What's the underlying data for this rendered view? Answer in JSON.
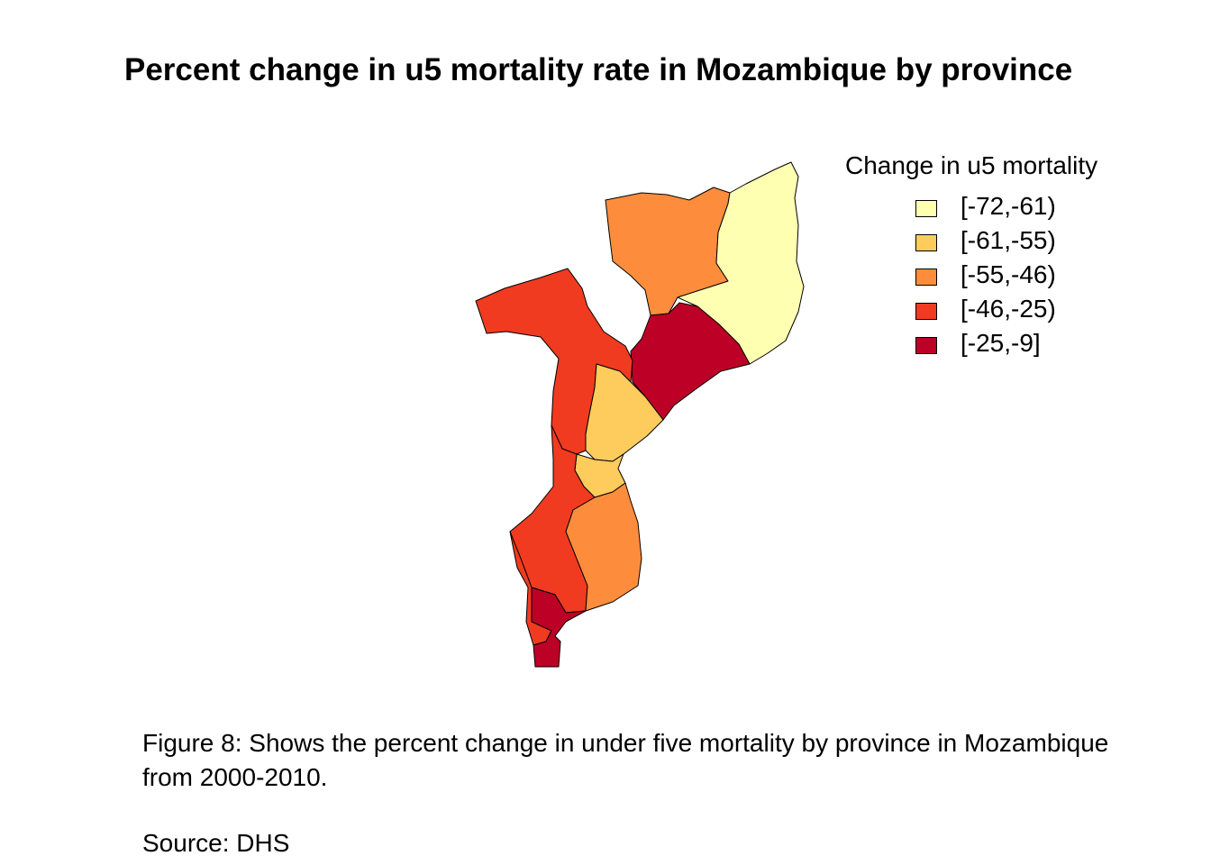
{
  "title": "Percent change in u5 mortality rate in Mozambique by province",
  "legend": {
    "title": "Change in u5 mortality",
    "items": [
      {
        "label": "[-72,-61)",
        "color": "#FFFFB2"
      },
      {
        "label": "[-61,-55)",
        "color": "#FECC5C"
      },
      {
        "label": "[-55,-46)",
        "color": "#FD8D3C"
      },
      {
        "label": "[-46,-25)",
        "color": "#F03B20"
      },
      {
        "label": "[-25,-9]",
        "color": "#BD0026"
      }
    ]
  },
  "map": {
    "country": "Mozambique",
    "regions": [
      {
        "class": "[-72,-61)"
      },
      {
        "class": "[-55,-46)"
      },
      {
        "class": "[-25,-9]"
      },
      {
        "class": "[-46,-25)"
      },
      {
        "class": "[-61,-55)"
      },
      {
        "class": "[-61,-55)"
      },
      {
        "class": "[-46,-25)"
      },
      {
        "class": "[-55,-46)"
      },
      {
        "class": "[-46,-25)"
      },
      {
        "class": "[-25,-9]"
      }
    ]
  },
  "caption": "Figure 8: Shows the percent change in under five mortality by province in Mozambique from 2000-2010.",
  "source": "Source: DHS"
}
